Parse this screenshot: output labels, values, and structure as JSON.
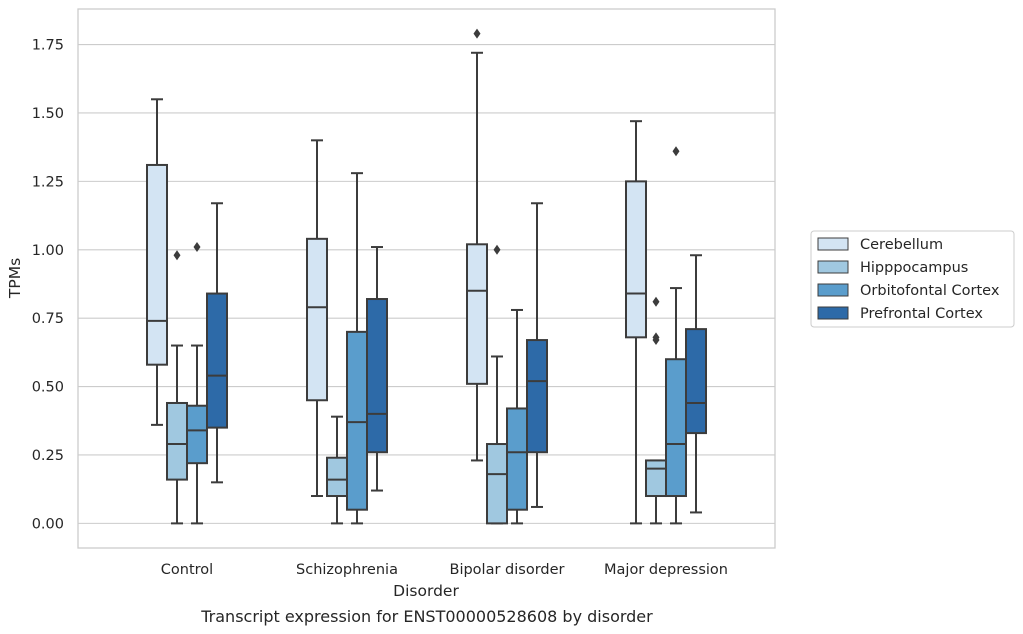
{
  "chart_data": {
    "type": "box",
    "xlabel": "Disorder",
    "ylabel": "TPMs",
    "caption": "Transcript expression for ENST00000528608 by disorder",
    "ylim": [
      -0.09,
      1.88
    ],
    "yticks": [
      "0.00",
      "0.25",
      "0.50",
      "0.75",
      "1.00",
      "1.25",
      "1.50",
      "1.75"
    ],
    "ytick_values": [
      0,
      0.25,
      0.5,
      0.75,
      1.0,
      1.25,
      1.5,
      1.75
    ],
    "grid": "horizontal",
    "legend_position": "right",
    "categories": [
      "Control",
      "Schizophrenia",
      "Bipolar disorder",
      "Major depression"
    ],
    "series": [
      {
        "name": "Cerebellum",
        "color": "#d3e4f3",
        "boxes": [
          {
            "whisker_low": 0.36,
            "q1": 0.58,
            "median": 0.74,
            "q3": 1.31,
            "whisker_high": 1.55,
            "outliers": []
          },
          {
            "whisker_low": 0.1,
            "q1": 0.45,
            "median": 0.79,
            "q3": 1.04,
            "whisker_high": 1.4,
            "outliers": []
          },
          {
            "whisker_low": 0.23,
            "q1": 0.51,
            "median": 0.85,
            "q3": 1.02,
            "whisker_high": 1.72,
            "outliers": [
              1.79
            ]
          },
          {
            "whisker_low": 0.0,
            "q1": 0.68,
            "median": 0.84,
            "q3": 1.25,
            "whisker_high": 1.47,
            "outliers": []
          }
        ]
      },
      {
        "name": "Hipppocampus",
        "color": "#a0c8e0",
        "boxes": [
          {
            "whisker_low": 0.0,
            "q1": 0.16,
            "median": 0.29,
            "q3": 0.44,
            "whisker_high": 0.65,
            "outliers": [
              0.98
            ]
          },
          {
            "whisker_low": 0.0,
            "q1": 0.1,
            "median": 0.16,
            "q3": 0.24,
            "whisker_high": 0.39,
            "outliers": []
          },
          {
            "whisker_low": 0.0,
            "q1": 0.0,
            "median": 0.18,
            "q3": 0.29,
            "whisker_high": 0.61,
            "outliers": [
              1.0
            ]
          },
          {
            "whisker_low": 0.0,
            "q1": 0.1,
            "median": 0.2,
            "q3": 0.23,
            "whisker_high": 0.23,
            "outliers": [
              0.68,
              0.67,
              0.81
            ]
          }
        ]
      },
      {
        "name": "Orbitofontal Cortex",
        "color": "#5a9dcc",
        "boxes": [
          {
            "whisker_low": 0.0,
            "q1": 0.22,
            "median": 0.34,
            "q3": 0.43,
            "whisker_high": 0.65,
            "outliers": [
              1.01
            ]
          },
          {
            "whisker_low": 0.0,
            "q1": 0.05,
            "median": 0.37,
            "q3": 0.7,
            "whisker_high": 1.28,
            "outliers": []
          },
          {
            "whisker_low": 0.0,
            "q1": 0.05,
            "median": 0.26,
            "q3": 0.42,
            "whisker_high": 0.78,
            "outliers": []
          },
          {
            "whisker_low": 0.0,
            "q1": 0.1,
            "median": 0.29,
            "q3": 0.6,
            "whisker_high": 0.86,
            "outliers": [
              1.36
            ]
          }
        ]
      },
      {
        "name": "Prefrontal Cortex",
        "color": "#2d6aa8",
        "boxes": [
          {
            "whisker_low": 0.15,
            "q1": 0.35,
            "median": 0.54,
            "q3": 0.84,
            "whisker_high": 1.17,
            "outliers": []
          },
          {
            "whisker_low": 0.12,
            "q1": 0.26,
            "median": 0.4,
            "q3": 0.82,
            "whisker_high": 1.01,
            "outliers": []
          },
          {
            "whisker_low": 0.06,
            "q1": 0.26,
            "median": 0.52,
            "q3": 0.67,
            "whisker_high": 1.17,
            "outliers": []
          },
          {
            "whisker_low": 0.04,
            "q1": 0.33,
            "median": 0.44,
            "q3": 0.71,
            "whisker_high": 0.98,
            "outliers": []
          }
        ]
      }
    ]
  }
}
